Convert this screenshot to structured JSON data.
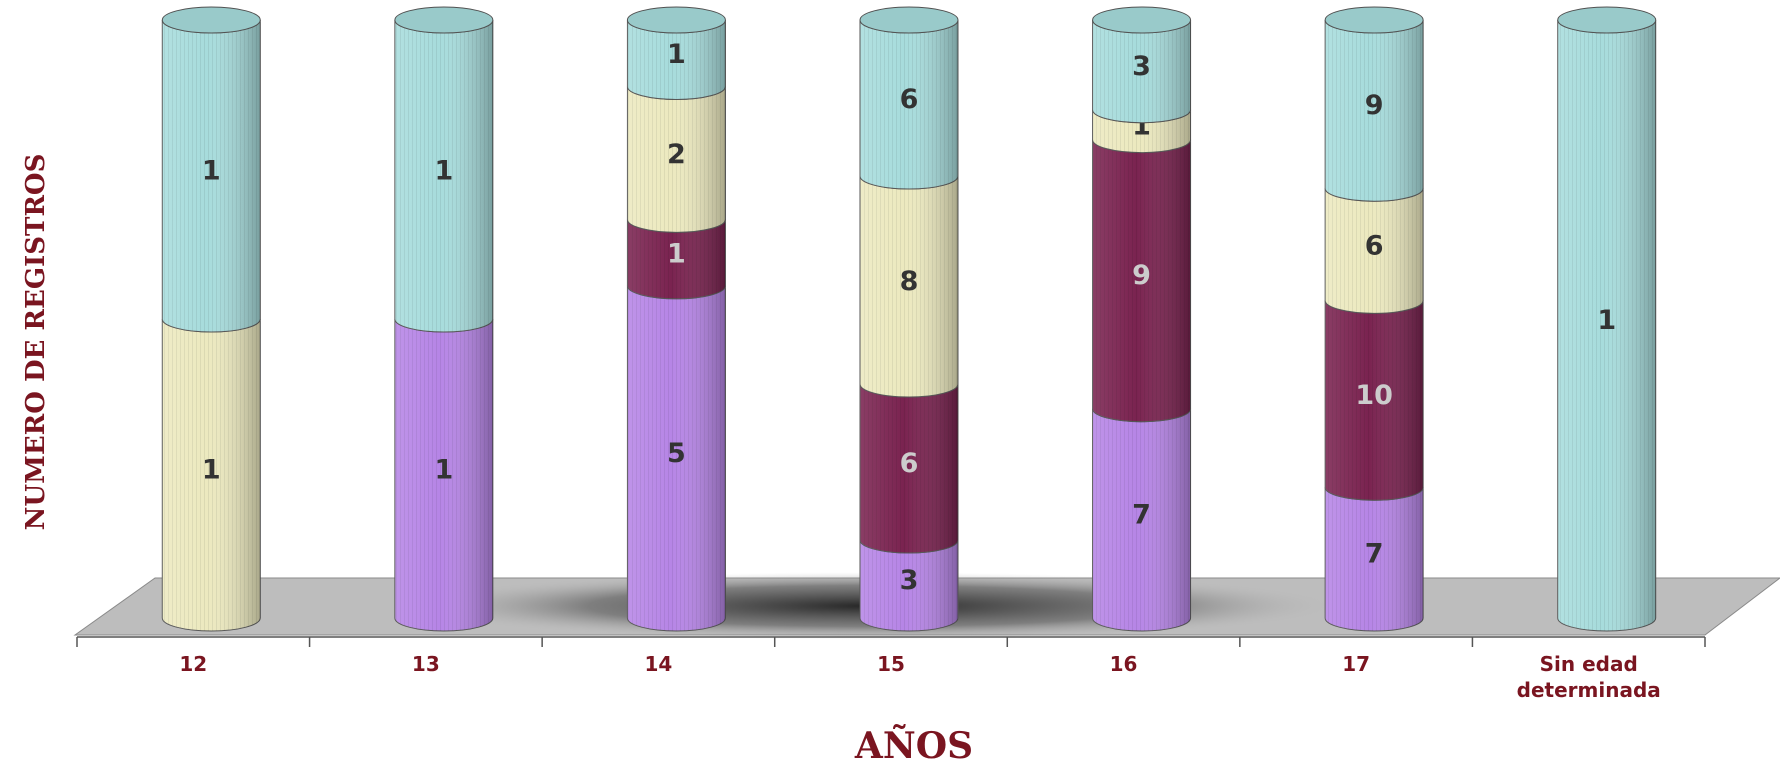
{
  "chart_data": {
    "type": "bar",
    "stacked": true,
    "style": "3d-cylinder",
    "xlabel": "AÑOS",
    "ylabel": "NUMERO DE REGISTROS",
    "categories": [
      "12",
      "13",
      "14",
      "15",
      "16",
      "17",
      "Sin edad determinada"
    ],
    "series": [
      {
        "color": "#b685e6",
        "label_color": "#333333",
        "values": [
          0,
          1,
          5,
          3,
          7,
          7,
          0
        ]
      },
      {
        "color": "#7a2350",
        "label_color": "#cccccc",
        "values": [
          0,
          0,
          1,
          6,
          9,
          10,
          0
        ]
      },
      {
        "color": "#ece9bf",
        "label_color": "#333333",
        "values": [
          1,
          0,
          2,
          8,
          1,
          6,
          0
        ]
      },
      {
        "color": "#a7dcdc",
        "label_color": "#333333",
        "values": [
          1,
          1,
          1,
          6,
          3,
          9,
          1
        ]
      }
    ]
  }
}
